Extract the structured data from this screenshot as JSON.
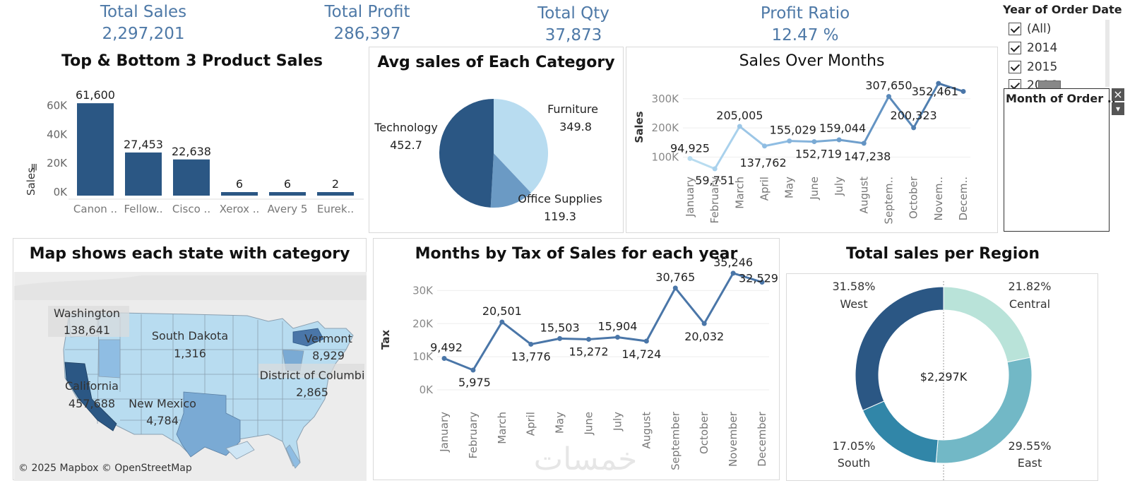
{
  "kpis": {
    "sales": {
      "label": "Total Sales",
      "value": "2,297,201"
    },
    "profit": {
      "label": "Total Profit",
      "value": "286,397"
    },
    "qty": {
      "label": "Total Qty",
      "value": "37,873"
    },
    "ratio": {
      "label": "Profit Ratio",
      "value": "12.47 %"
    }
  },
  "filter": {
    "title": "Year of Order Date",
    "options": [
      "(All)",
      "2014",
      "2015",
      "2016"
    ],
    "popup_title": "Month of Order ..",
    "close_glyph": "×",
    "menu_glyph": "▾"
  },
  "top_bottom": {
    "title": "Top & Bottom 3 Product Sales",
    "ylabel": "Sales",
    "yticks": [
      "60K",
      "40K",
      "20K",
      "0K"
    ],
    "labels": [
      "Canon ..",
      "Fellow..",
      "Cisco ..",
      "Xerox ..",
      "Avery 5",
      "Eurek.."
    ],
    "value_labels": [
      "61,600",
      "27,453",
      "22,638",
      "6",
      "6",
      "2"
    ]
  },
  "pie": {
    "title": "Avg sales of Each Category",
    "slices": [
      {
        "name": "Furniture",
        "value": "349.8"
      },
      {
        "name": "Office Supplies",
        "value": "119.3"
      },
      {
        "name": "Technology",
        "value": "452.7"
      }
    ]
  },
  "months_line": {
    "title": "Sales Over Months",
    "ylabel": "Sales",
    "yticks": [
      "300K",
      "200K",
      "100K"
    ],
    "months": [
      "January",
      "February",
      "March",
      "April",
      "May",
      "June",
      "July",
      "August",
      "Septem..",
      "October",
      "Novem..",
      "Decem.."
    ],
    "value_labels": [
      "94,925",
      "59,751",
      "205,005",
      "137,762",
      "155,029",
      "152,719",
      "159,044",
      "147,238",
      "307,650",
      "200,323",
      "352,461",
      ""
    ]
  },
  "map": {
    "title": "Map shows each state with category",
    "attribution": "© 2025 Mapbox © OpenStreetMap",
    "labels": [
      {
        "state": "Washington",
        "value": "138,641"
      },
      {
        "state": "South Dakota",
        "value": "1,316"
      },
      {
        "state": "Vermont",
        "value": "8,929"
      },
      {
        "state": "District of Columbi",
        "value": "2,865"
      },
      {
        "state": "California",
        "value": "457,688"
      },
      {
        "state": "New Mexico",
        "value": "4,784"
      }
    ]
  },
  "tax_line": {
    "title": "Months by Tax of Sales for each year",
    "ylabel": "Tax",
    "yticks": [
      "30K",
      "20K",
      "10K",
      "0K"
    ],
    "months": [
      "January",
      "February",
      "March",
      "April",
      "May",
      "June",
      "July",
      "August",
      "September",
      "October",
      "November",
      "December"
    ],
    "value_labels": [
      "9,492",
      "5,975",
      "20,501",
      "13,776",
      "15,503",
      "15,272",
      "15,904",
      "14,724",
      "30,765",
      "20,032",
      "35,246",
      "32,529"
    ]
  },
  "donut": {
    "title": "Total sales per Region",
    "center": "$2,297K",
    "regions": [
      {
        "name": "West",
        "pct": "31.58%"
      },
      {
        "name": "Central",
        "pct": "21.82%"
      },
      {
        "name": "East",
        "pct": "29.55%"
      },
      {
        "name": "South",
        "pct": "17.05%"
      }
    ]
  },
  "watermark": "خمسات",
  "chart_data": [
    {
      "type": "bar",
      "title": "Top & Bottom 3 Product Sales",
      "ylabel": "Sales",
      "categories": [
        "Canon ..",
        "Fellow..",
        "Cisco ..",
        "Xerox ..",
        "Avery 5",
        "Eurek.."
      ],
      "values": [
        61600,
        27453,
        22638,
        6,
        6,
        2
      ],
      "ylim": [
        0,
        70000
      ],
      "color": "#2b5784"
    },
    {
      "type": "pie",
      "title": "Avg sales of Each Category",
      "categories": [
        "Furniture",
        "Office Supplies",
        "Technology"
      ],
      "values": [
        349.8,
        119.3,
        452.7
      ],
      "colors": [
        "#b8dcf0",
        "#6b9ac4",
        "#2b5784"
      ]
    },
    {
      "type": "line",
      "title": "Sales Over Months",
      "ylabel": "Sales",
      "categories": [
        "January",
        "February",
        "March",
        "April",
        "May",
        "June",
        "July",
        "August",
        "Septem..",
        "October",
        "Novem..",
        "Decem.."
      ],
      "values": [
        94925,
        59751,
        205005,
        137762,
        155029,
        152719,
        159044,
        147238,
        307650,
        200323,
        352461,
        325000
      ],
      "ylim": [
        50000,
        360000
      ]
    },
    {
      "type": "line",
      "title": "Months by Tax of Sales for each year",
      "ylabel": "Tax",
      "categories": [
        "January",
        "February",
        "March",
        "April",
        "May",
        "June",
        "July",
        "August",
        "September",
        "October",
        "November",
        "December"
      ],
      "values": [
        9492,
        5975,
        20501,
        13776,
        15503,
        15272,
        15904,
        14724,
        30765,
        20032,
        35246,
        32529
      ],
      "ylim": [
        0,
        35000
      ],
      "color": "#4a76a8"
    },
    {
      "type": "pie",
      "title": "Total sales per Region",
      "categories": [
        "Central",
        "East",
        "South",
        "West"
      ],
      "values": [
        21.82,
        29.55,
        17.05,
        31.58
      ],
      "colors": [
        "#b9e3d9",
        "#72b8c6",
        "#3186a8",
        "#2b5784"
      ]
    }
  ]
}
